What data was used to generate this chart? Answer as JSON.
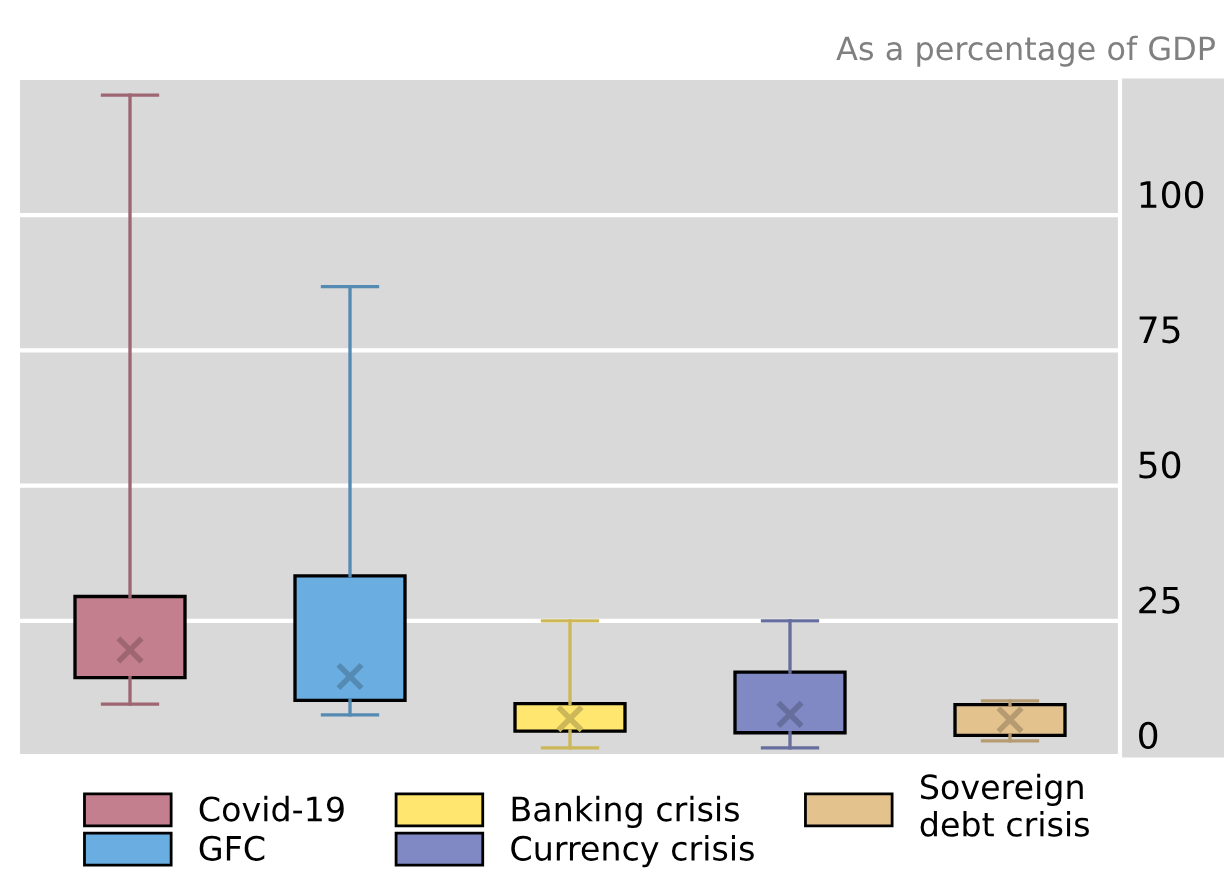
{
  "chart_data": {
    "type": "box",
    "subtitle": "As a percentage of GDP",
    "categories": [
      null,
      null,
      null,
      null,
      null
    ],
    "series": [
      {
        "name": "Covid-19",
        "color": "#c47f8e",
        "boxes": [
          {
            "low": 9.6,
            "q1": 14.5,
            "median": null,
            "q3": 29.5,
            "high": 122.2,
            "mean": 19.6
          },
          null,
          null,
          null,
          null
        ]
      },
      {
        "name": "GFC",
        "color": "#6aade0",
        "boxes": [
          null,
          {
            "low": 7.6,
            "q1": 10.3,
            "median": null,
            "q3": 33.3,
            "high": 86.8,
            "mean": 14.7
          },
          null,
          null,
          null
        ]
      },
      {
        "name": "Banking crisis",
        "color": "#ffe66e",
        "boxes": [
          null,
          null,
          {
            "low": 1.5,
            "q1": 4.6,
            "median": null,
            "q3": 9.7,
            "high": 25.0,
            "mean": 6.9
          },
          null,
          null
        ]
      },
      {
        "name": "Currency crisis",
        "color": "#8089c4",
        "boxes": [
          null,
          null,
          null,
          {
            "low": 1.5,
            "q1": 4.3,
            "median": null,
            "q3": 15.5,
            "high": 25.0,
            "mean": 7.7
          },
          null
        ]
      },
      {
        "name": "Sovereign\ndebt crisis",
        "color": "#e4c28e",
        "boxes": [
          null,
          null,
          null,
          null,
          {
            "low": 2.8,
            "q1": 3.8,
            "median": null,
            "q3": 9.5,
            "high": 10.2,
            "mean": 6.7
          }
        ]
      }
    ],
    "ylim": [
      0,
      125
    ],
    "yticks": [
      0,
      25,
      50,
      75,
      100
    ],
    "grid": "y",
    "legend": "bottom",
    "marker": "cross"
  }
}
